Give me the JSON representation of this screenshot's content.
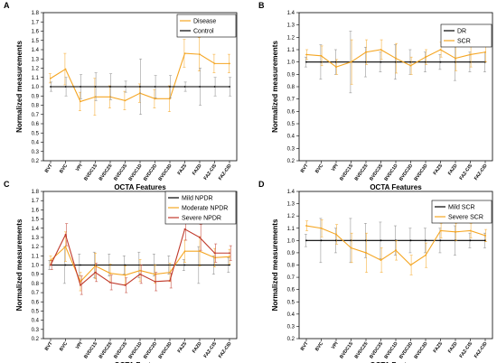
{
  "colors": {
    "orange": "#f5a623",
    "red": "#c0392b",
    "black": "#000000",
    "error_gray": "#888888"
  },
  "chart_data": [
    {
      "panel": "A",
      "type": "line",
      "xlabel": "OCTA Features",
      "ylabel": "Normalized measurements",
      "ylim": [
        0.2,
        1.8
      ],
      "yticks": [
        "0.2",
        "0.3",
        "0.4",
        "0.5",
        "0.6",
        "0.7",
        "0.8",
        "0.9",
        "1.0",
        "1.1",
        "1.2",
        "1.3",
        "1.4",
        "1.5",
        "1.6",
        "1.7",
        "1.8"
      ],
      "categories": [
        "BVT",
        "BVC",
        "VPI",
        "BVDC1S",
        "BVDC2S",
        "BVDC3S",
        "BVDC1D",
        "BVDC2D",
        "BVDC3D",
        "FAZS",
        "FAZD",
        "FAZ-CIS",
        "FAZ-CID"
      ],
      "legend_position": "top-right",
      "series": [
        {
          "name": "Disease",
          "color": "#f5a623",
          "values": [
            1.09,
            1.19,
            0.84,
            0.89,
            0.89,
            0.85,
            0.93,
            0.87,
            0.87,
            1.36,
            1.35,
            1.25,
            1.25
          ],
          "err": [
            0.05,
            0.17,
            0.1,
            0.2,
            0.12,
            0.1,
            0.1,
            0.1,
            0.14,
            0.15,
            0.18,
            0.1,
            0.1
          ]
        },
        {
          "name": "Control",
          "color": "#000000",
          "values": [
            1,
            1,
            1,
            1,
            1,
            1,
            1,
            1,
            1,
            1,
            1,
            1,
            1
          ],
          "err": [
            0.05,
            0.1,
            0.13,
            0.15,
            0.14,
            0.06,
            0.3,
            0.12,
            0.12,
            0.05,
            0.2,
            0.1,
            0.1
          ]
        }
      ]
    },
    {
      "panel": "B",
      "type": "line",
      "xlabel": "OCTA Features",
      "ylabel": "Normalized measurements",
      "ylim": [
        0.2,
        1.4
      ],
      "yticks": [
        "0.2",
        "0.3",
        "0.4",
        "0.5",
        "0.6",
        "0.7",
        "0.8",
        "0.9",
        "1.0",
        "1.1",
        "1.2",
        "1.3",
        "1.4"
      ],
      "categories": [
        "BVT",
        "BVC",
        "VPI",
        "BVDC1S",
        "BVDC2S",
        "BVDC3S",
        "BVDC1D",
        "BVDC2D",
        "BVDC3D",
        "FAZS",
        "FAZD",
        "FAZ-CIS",
        "FAZ-CID"
      ],
      "legend_position": "top-right",
      "series": [
        {
          "name": "DR",
          "color": "#000000",
          "values": [
            1,
            1,
            1,
            1,
            1,
            1,
            1,
            1,
            1,
            1,
            1,
            1,
            1
          ],
          "err": [
            0.04,
            0.14,
            0.1,
            0.25,
            0.12,
            0.08,
            0.14,
            0.1,
            0.08,
            0.06,
            0.15,
            0.08,
            0.08
          ]
        },
        {
          "name": "SCR",
          "color": "#f5a623",
          "values": [
            1.06,
            1.05,
            0.96,
            1.0,
            1.08,
            1.1,
            1.03,
            0.97,
            1.04,
            1.1,
            1.03,
            1.06,
            1.08
          ],
          "err": [
            0.04,
            0.08,
            0.06,
            0.18,
            0.1,
            0.08,
            0.12,
            0.07,
            0.06,
            0.06,
            0.1,
            0.1,
            0.08
          ]
        }
      ]
    },
    {
      "panel": "C",
      "type": "line",
      "xlabel": "OCTA Features",
      "ylabel": "Normalized measurements",
      "ylim": [
        0.2,
        1.8
      ],
      "yticks": [
        "0.2",
        "0.3",
        "0.4",
        "0.5",
        "0.6",
        "0.7",
        "0.8",
        "0.9",
        "1.0",
        "1.1",
        "1.2",
        "1.3",
        "1.4",
        "1.5",
        "1.6",
        "1.7",
        "1.8"
      ],
      "categories": [
        "BVT",
        "BVC",
        "VPI",
        "BVDC1S",
        "BVDC2S",
        "BVDC3S",
        "BVDC1D",
        "BVDC2D",
        "BVDC3D",
        "FAZS",
        "FAZD",
        "FAZ-CIS",
        "FAZ-CID"
      ],
      "legend_position": "top-right",
      "series": [
        {
          "name": "Mild NPDR",
          "color": "#000000",
          "values": [
            1,
            1,
            1,
            1,
            1,
            1,
            1,
            1,
            1,
            1,
            1,
            1,
            1
          ],
          "err": [
            0.05,
            0.2,
            0.12,
            0.14,
            0.12,
            0.1,
            0.14,
            0.12,
            0.1,
            0.06,
            0.2,
            0.1,
            0.08
          ]
        },
        {
          "name": "Moderate NPDR",
          "color": "#f5a623",
          "values": [
            1.05,
            1.2,
            0.82,
            0.99,
            0.91,
            0.89,
            0.94,
            0.9,
            0.92,
            1.15,
            1.15,
            1.08,
            1.09
          ],
          "err": [
            0.05,
            0.16,
            0.1,
            0.14,
            0.1,
            0.1,
            0.12,
            0.1,
            0.1,
            0.12,
            0.16,
            0.1,
            0.08
          ]
        },
        {
          "name": "Severe NPDR",
          "color": "#c0392b",
          "values": [
            1.0,
            1.33,
            0.78,
            0.92,
            0.81,
            0.78,
            0.9,
            0.82,
            0.83,
            1.39,
            1.3,
            1.13,
            1.13
          ],
          "err": [
            0.05,
            0.12,
            0.1,
            0.1,
            0.08,
            0.08,
            0.1,
            0.1,
            0.08,
            0.12,
            0.14,
            0.1,
            0.08
          ]
        }
      ]
    },
    {
      "panel": "D",
      "type": "line",
      "xlabel": "OCTA Features",
      "ylabel": "Normalized measurements",
      "ylim": [
        0.2,
        1.4
      ],
      "yticks": [
        "0.2",
        "0.3",
        "0.4",
        "0.5",
        "0.6",
        "0.7",
        "0.8",
        "0.9",
        "1.0",
        "1.1",
        "1.2",
        "1.3",
        "1.4"
      ],
      "categories": [
        "BVT",
        "BVC",
        "VPI",
        "BVDC1S",
        "BVDC2S",
        "BVDC3S",
        "BVDC1D",
        "BVDC2D",
        "BVDC3D",
        "FAZS",
        "FAZD",
        "FAZ-CIS",
        "FAZ-CID"
      ],
      "legend_position": "top-right",
      "series": [
        {
          "name": "Mild SCR",
          "color": "#000000",
          "values": [
            1,
            1,
            1,
            1,
            1,
            1,
            1,
            1,
            1,
            1,
            1,
            1,
            1
          ],
          "err": [
            0.05,
            0.18,
            0.1,
            0.18,
            0.14,
            0.15,
            0.12,
            0.1,
            0.1,
            0.1,
            0.12,
            0.06,
            0.06
          ]
        },
        {
          "name": "Severe SCR",
          "color": "#f5a623",
          "values": [
            1.12,
            1.1,
            1.05,
            0.94,
            0.9,
            0.84,
            0.92,
            0.8,
            0.88,
            1.08,
            1.07,
            1.08,
            1.04
          ],
          "err": [
            0.04,
            0.07,
            0.08,
            0.12,
            0.16,
            0.1,
            0.08,
            0.08,
            0.1,
            0.06,
            0.07,
            0.06,
            0.05
          ]
        }
      ]
    }
  ]
}
